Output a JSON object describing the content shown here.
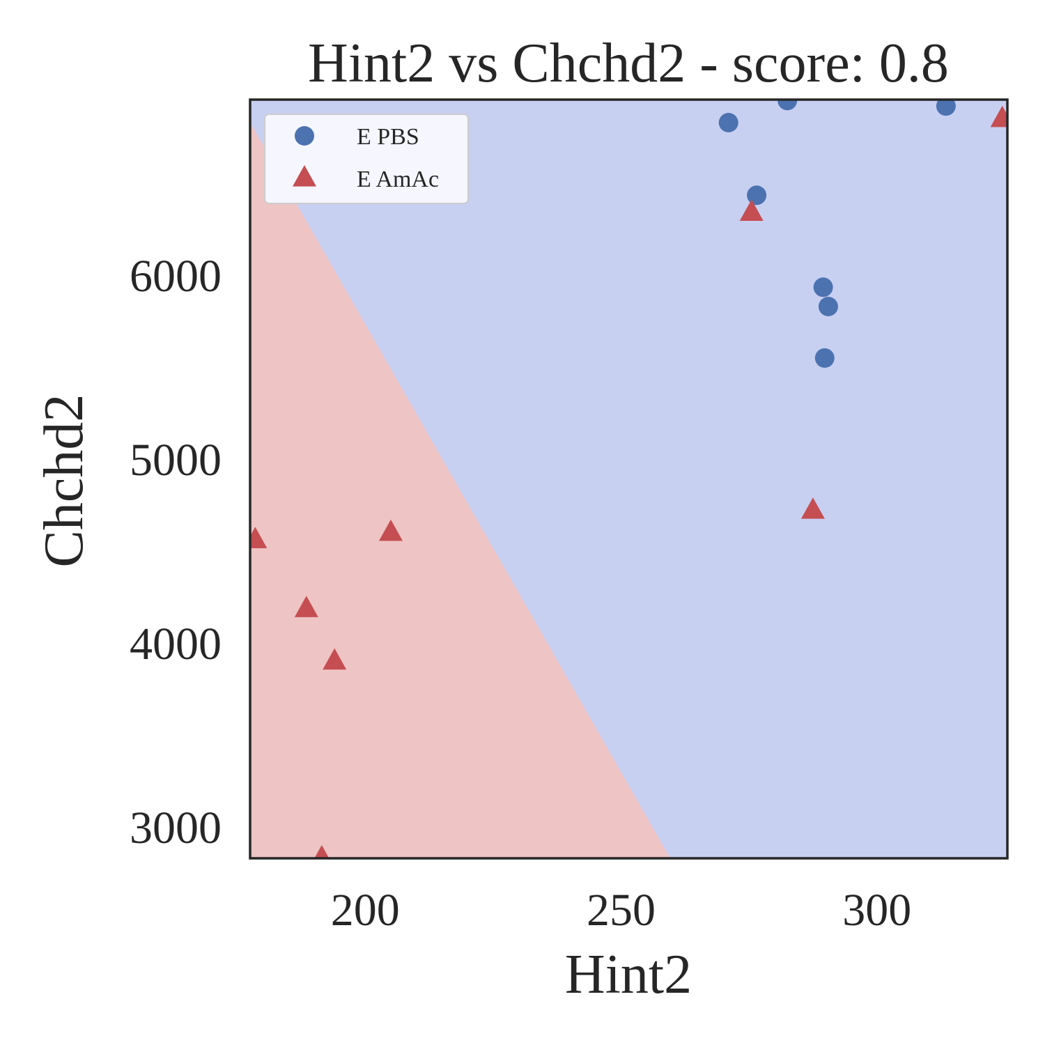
{
  "chart_data": {
    "type": "scatter",
    "title": "Hint2 vs Chchd2 - score: 0.8",
    "xlabel": "Hint2",
    "ylabel": "Chchd2",
    "xlim": [
      177.5,
      325.5
    ],
    "ylim": [
      2830,
      6955
    ],
    "xticks": [
      200,
      250,
      300
    ],
    "yticks": [
      3000,
      4000,
      5000,
      6000
    ],
    "grid": false,
    "legend_position": "top-left",
    "regions": {
      "boundary": [
        [
          177.5,
          6830
        ],
        [
          259.6,
          2830
        ]
      ],
      "lower_left_color": "#efc4c4",
      "upper_right_color": "#c8d0f2"
    },
    "series": [
      {
        "name": "E PBS",
        "marker": "circle",
        "color": "#4c72b0",
        "points": [
          [
            271,
            6830
          ],
          [
            282.5,
            6950
          ],
          [
            276.5,
            6435
          ],
          [
            313.5,
            6920
          ],
          [
            289.5,
            5935
          ],
          [
            290.5,
            5830
          ],
          [
            289.8,
            5550
          ]
        ]
      },
      {
        "name": "E AmAc",
        "marker": "triangle",
        "color": "#c44e52",
        "points": [
          [
            178.5,
            4560
          ],
          [
            205,
            4600
          ],
          [
            188.5,
            4185
          ],
          [
            194,
            3900
          ],
          [
            191.5,
            2830
          ],
          [
            275.5,
            6340
          ],
          [
            287.5,
            4720
          ],
          [
            324.5,
            6850
          ]
        ]
      }
    ]
  }
}
